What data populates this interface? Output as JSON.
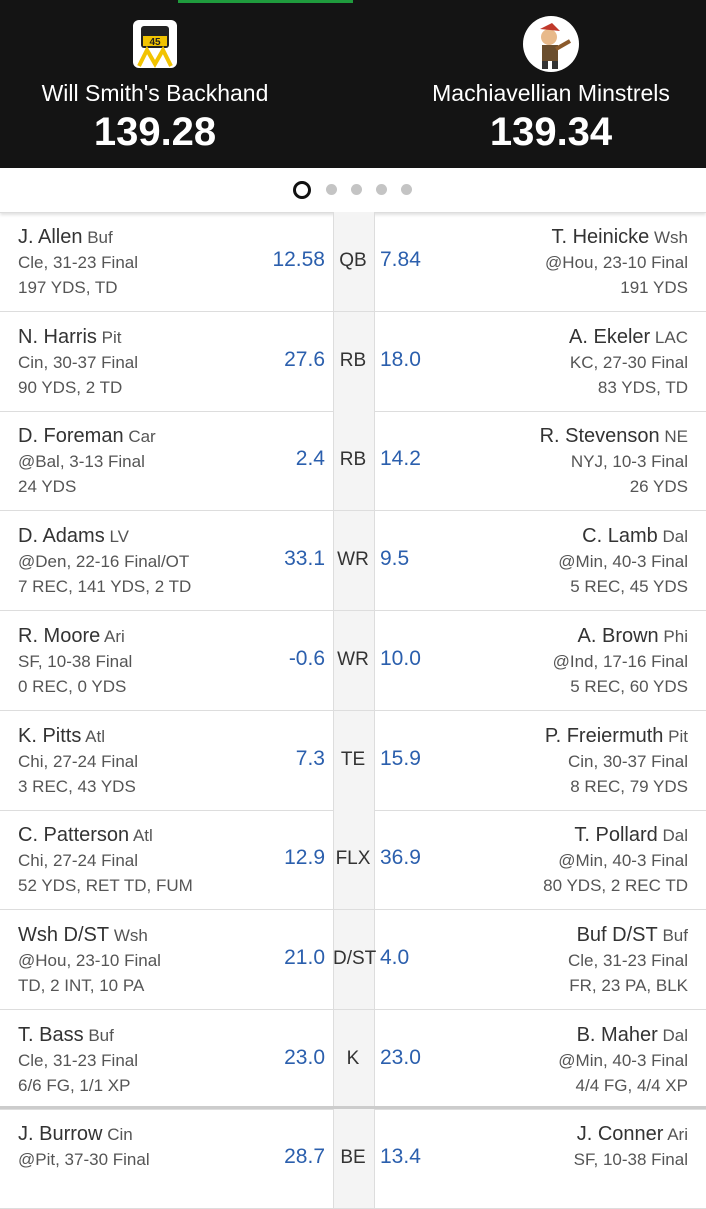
{
  "header": {
    "left": {
      "name": "Will Smith's Backhand",
      "score": "139.28"
    },
    "right": {
      "name": "Machiavellian Minstrels",
      "score": "139.34"
    }
  },
  "rows": [
    {
      "pos": "QB",
      "left": {
        "name": "J. Allen",
        "team": "Buf",
        "game": "Cle, 31-23 Final",
        "stats": "197 YDS, TD",
        "score": "12.58"
      },
      "right": {
        "name": "T. Heinicke",
        "team": "Wsh",
        "game": "@Hou, 23-10 Final",
        "stats": "191 YDS",
        "score": "7.84"
      }
    },
    {
      "pos": "RB",
      "left": {
        "name": "N. Harris",
        "team": "Pit",
        "game": "Cin, 30-37 Final",
        "stats": "90 YDS, 2 TD",
        "score": "27.6"
      },
      "right": {
        "name": "A. Ekeler",
        "team": "LAC",
        "game": "KC, 27-30 Final",
        "stats": "83 YDS, TD",
        "score": "18.0"
      }
    },
    {
      "pos": "RB",
      "left": {
        "name": "D. Foreman",
        "team": "Car",
        "game": "@Bal, 3-13 Final",
        "stats": "24 YDS",
        "score": "2.4"
      },
      "right": {
        "name": "R. Stevenson",
        "team": "NE",
        "game": "NYJ, 10-3 Final",
        "stats": "26 YDS",
        "score": "14.2"
      }
    },
    {
      "pos": "WR",
      "left": {
        "name": "D. Adams",
        "team": "LV",
        "game": "@Den, 22-16 Final/OT",
        "stats": "7 REC, 141 YDS, 2 TD",
        "score": "33.1"
      },
      "right": {
        "name": "C. Lamb",
        "team": "Dal",
        "game": "@Min, 40-3 Final",
        "stats": "5 REC, 45 YDS",
        "score": "9.5"
      }
    },
    {
      "pos": "WR",
      "left": {
        "name": "R. Moore",
        "team": "Ari",
        "game": "SF, 10-38 Final",
        "stats": "0 REC, 0 YDS",
        "score": "-0.6"
      },
      "right": {
        "name": "A. Brown",
        "team": "Phi",
        "game": "@Ind, 17-16 Final",
        "stats": "5 REC, 60 YDS",
        "score": "10.0"
      }
    },
    {
      "pos": "TE",
      "left": {
        "name": "K. Pitts",
        "team": "Atl",
        "game": "Chi, 27-24 Final",
        "stats": "3 REC, 43 YDS",
        "score": "7.3"
      },
      "right": {
        "name": "P. Freiermuth",
        "team": "Pit",
        "game": "Cin, 30-37 Final",
        "stats": "8 REC, 79 YDS",
        "score": "15.9"
      }
    },
    {
      "pos": "FLX",
      "left": {
        "name": "C. Patterson",
        "team": "Atl",
        "game": "Chi, 27-24 Final",
        "stats": "52 YDS, RET TD, FUM",
        "score": "12.9"
      },
      "right": {
        "name": "T. Pollard",
        "team": "Dal",
        "game": "@Min, 40-3 Final",
        "stats": "80 YDS, 2 REC TD",
        "score": "36.9"
      }
    },
    {
      "pos": "D/ST",
      "left": {
        "name": "Wsh D/ST",
        "team": "Wsh",
        "game": "@Hou, 23-10 Final",
        "stats": "TD, 2 INT, 10 PA",
        "score": "21.0"
      },
      "right": {
        "name": "Buf D/ST",
        "team": "Buf",
        "game": "Cle, 31-23 Final",
        "stats": "FR, 23 PA, BLK",
        "score": "4.0"
      }
    },
    {
      "pos": "K",
      "left": {
        "name": "T. Bass",
        "team": "Buf",
        "game": "Cle, 31-23 Final",
        "stats": "6/6 FG, 1/1 XP",
        "score": "23.0"
      },
      "right": {
        "name": "B. Maher",
        "team": "Dal",
        "game": "@Min, 40-3 Final",
        "stats": "4/4 FG, 4/4 XP",
        "score": "23.0"
      }
    },
    {
      "pos": "BE",
      "left": {
        "name": "J. Burrow",
        "team": "Cin",
        "game": "@Pit, 37-30 Final",
        "score": "28.7"
      },
      "right": {
        "name": "J. Conner",
        "team": "Ari",
        "game": "SF, 10-38 Final",
        "score": "13.4"
      }
    }
  ]
}
